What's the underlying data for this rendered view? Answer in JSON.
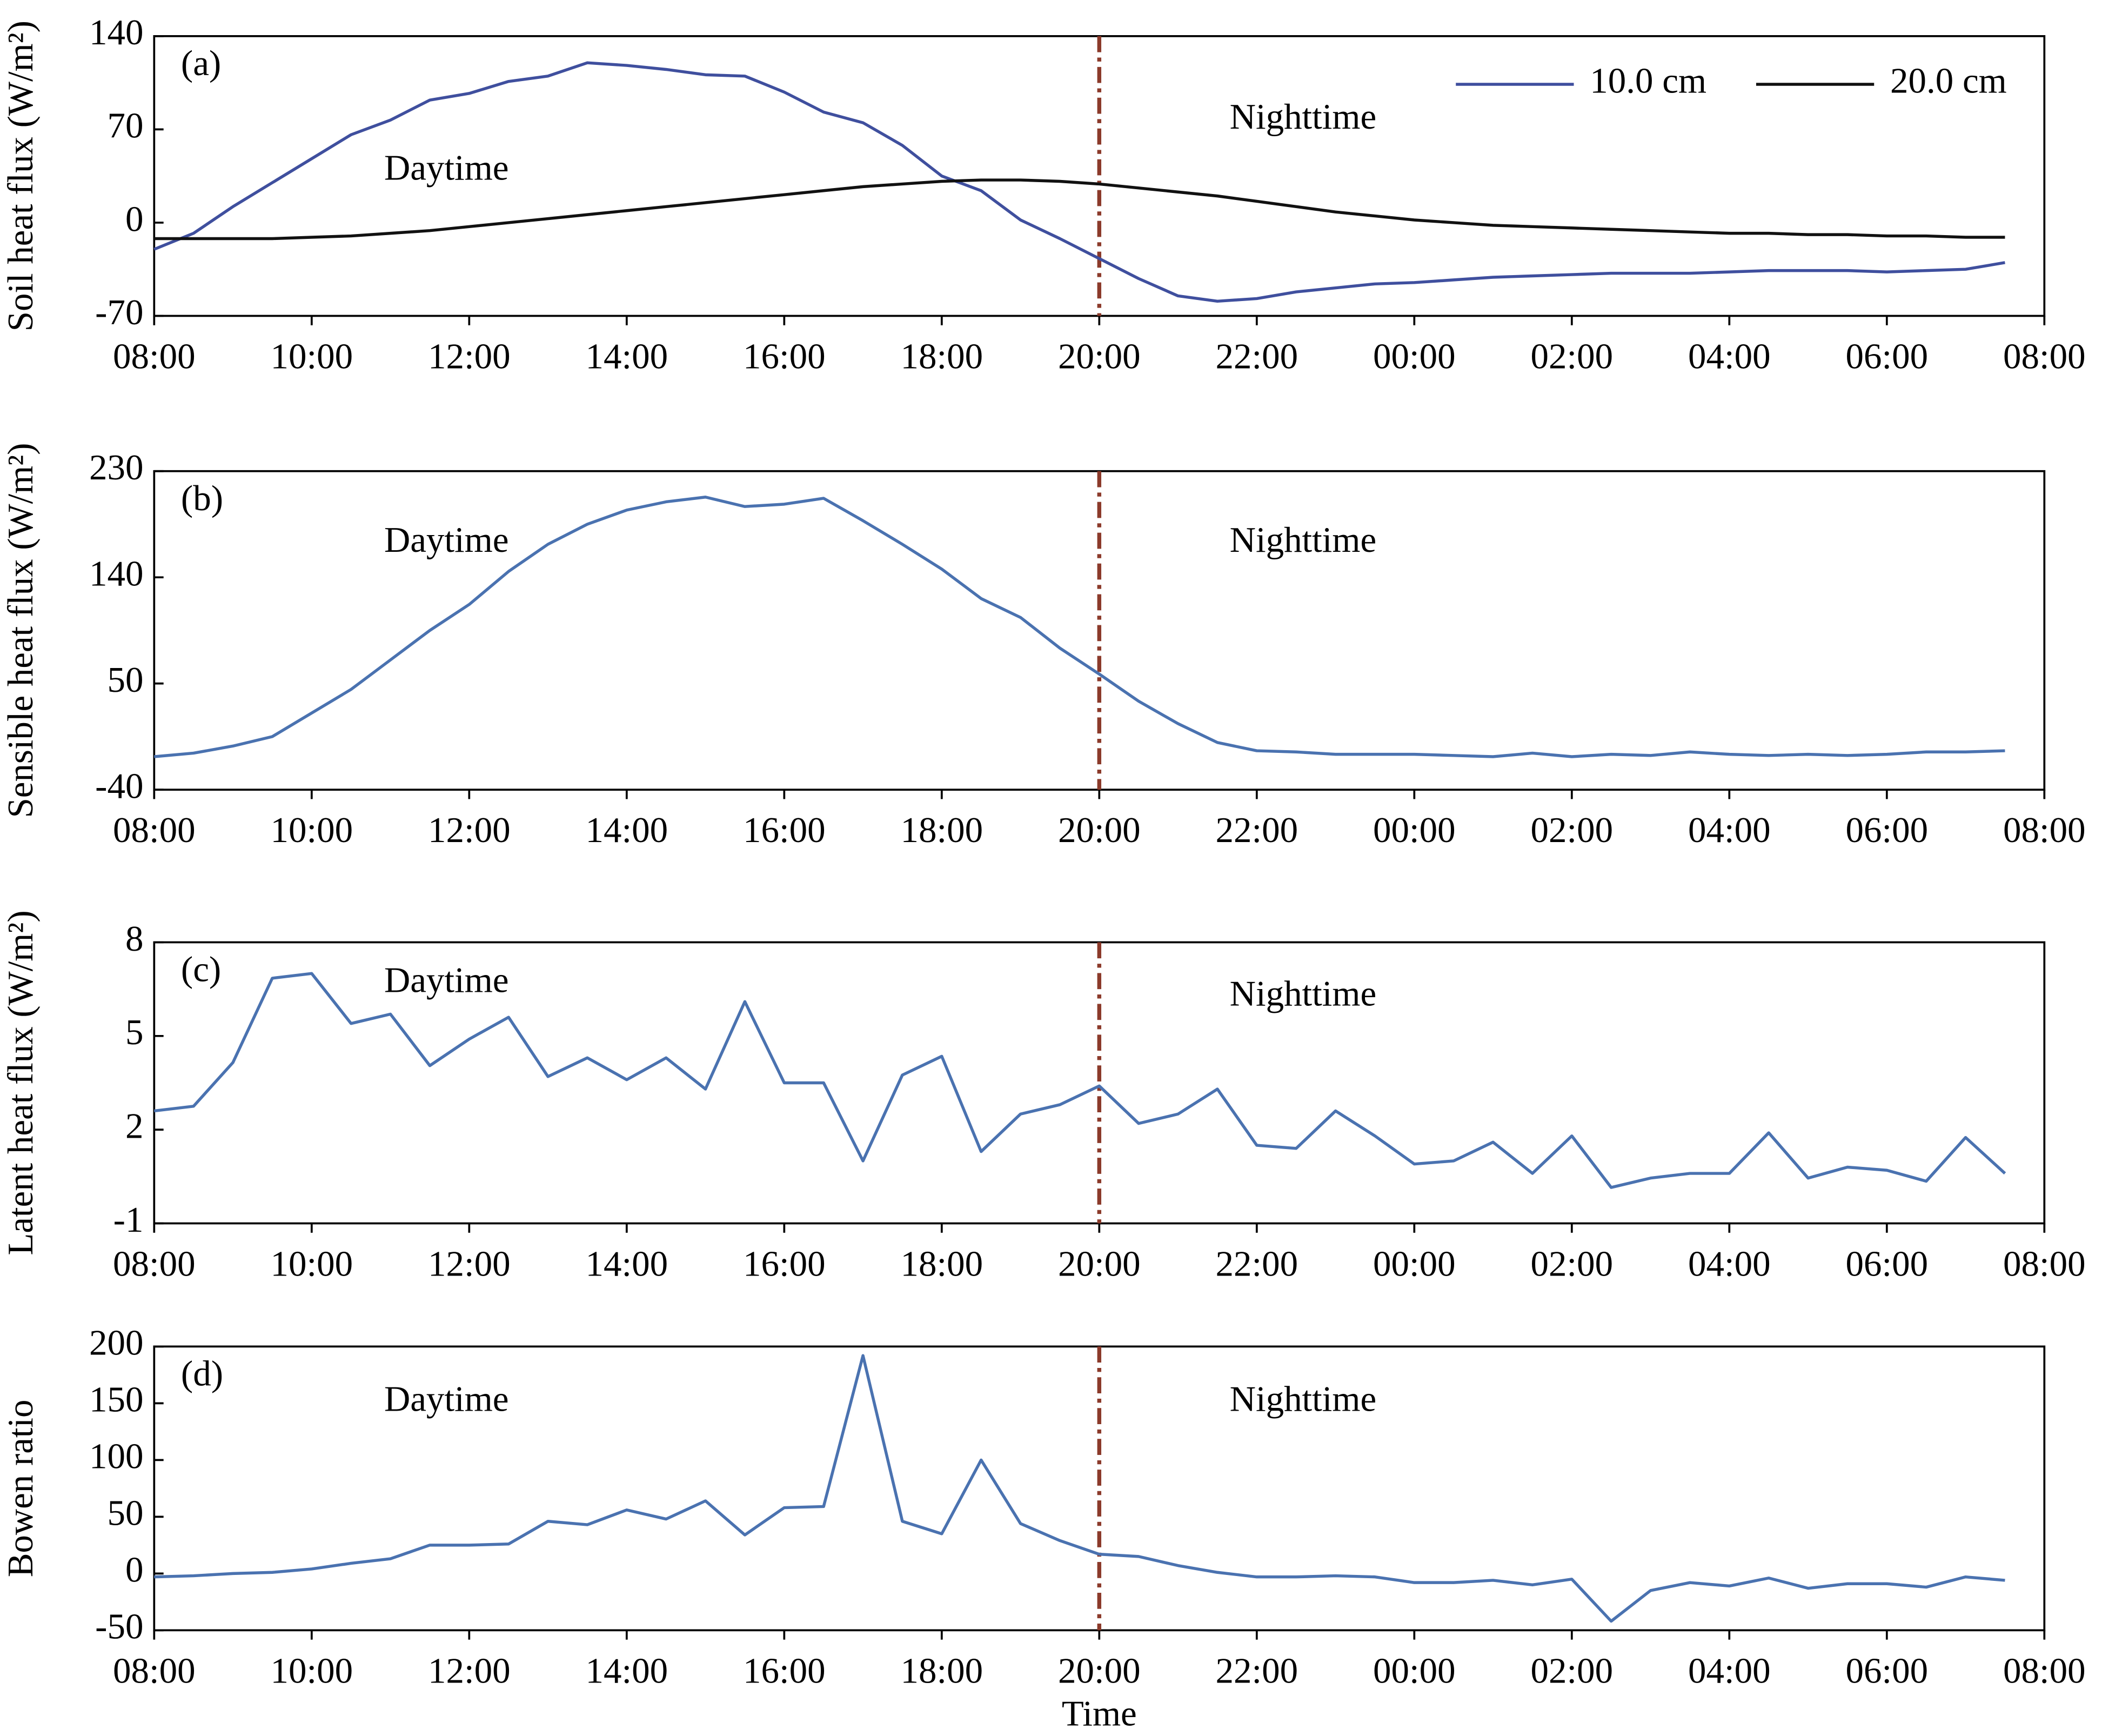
{
  "chart_data": [
    {
      "type": "line",
      "panel_label": "(a)",
      "ylabel": "Soil heat flux (W/m²)",
      "annotations": [
        "Daytime",
        "Nighttime"
      ],
      "legend": "upper right",
      "divider_x": 20,
      "divider_color": "#8b3a2a",
      "x": [
        8,
        8.5,
        9,
        9.5,
        10,
        10.5,
        11,
        11.5,
        12,
        12.5,
        13,
        13.5,
        14,
        14.5,
        15,
        15.5,
        16,
        16.5,
        17,
        17.5,
        18,
        18.5,
        19,
        19.5,
        20,
        20.5,
        21,
        21.5,
        22,
        22.5,
        23,
        23.5,
        24,
        24.5,
        25,
        25.5,
        26,
        26.5,
        27,
        27.5,
        28,
        28.5,
        29,
        29.5,
        30,
        30.5,
        31,
        31.5
      ],
      "xlim": [
        8,
        32
      ],
      "xticks": [
        {
          "value": 8,
          "label": "08:00"
        },
        {
          "value": 10,
          "label": "10:00"
        },
        {
          "value": 12,
          "label": "12:00"
        },
        {
          "value": 14,
          "label": "14:00"
        },
        {
          "value": 16,
          "label": "16:00"
        },
        {
          "value": 18,
          "label": "18:00"
        },
        {
          "value": 20,
          "label": "20:00"
        },
        {
          "value": 22,
          "label": "22:00"
        },
        {
          "value": 24,
          "label": "00:00"
        },
        {
          "value": 26,
          "label": "02:00"
        },
        {
          "value": 28,
          "label": "04:00"
        },
        {
          "value": 30,
          "label": "06:00"
        },
        {
          "value": 32,
          "label": "08:00"
        }
      ],
      "ylim": [
        -70,
        140
      ],
      "yticks": [
        -70,
        0,
        70,
        140
      ],
      "series": [
        {
          "name": "10.0 cm",
          "color": "#3f4f9e",
          "values": [
            -20,
            -8,
            12,
            30,
            48,
            66,
            77,
            92,
            97,
            106,
            110,
            120,
            118,
            115,
            111,
            110,
            98,
            83,
            75,
            58,
            35,
            24,
            2,
            -12,
            -27,
            -42,
            -55,
            -59,
            -57,
            -52,
            -49,
            -46,
            -45,
            -43,
            -41,
            -40,
            -39,
            -38,
            -38,
            -38,
            -37,
            -36,
            -36,
            -36,
            -37,
            -36,
            -35,
            -30
          ]
        },
        {
          "name": "20.0 cm",
          "color": "#111111",
          "values": [
            -12,
            -12,
            -12,
            -12,
            -11,
            -10,
            -8,
            -6,
            -3,
            0,
            3,
            6,
            9,
            12,
            15,
            18,
            21,
            24,
            27,
            29,
            31,
            32,
            32,
            31,
            29,
            26,
            23,
            20,
            16,
            12,
            8,
            5,
            2,
            0,
            -2,
            -3,
            -4,
            -5,
            -6,
            -7,
            -8,
            -8,
            -9,
            -9,
            -10,
            -10,
            -11,
            -11
          ]
        }
      ]
    },
    {
      "type": "line",
      "panel_label": "(b)",
      "ylabel": "Sensible heat flux (W/m²)",
      "annotations": [
        "Daytime",
        "Nighttime"
      ],
      "divider_x": 20,
      "divider_color": "#8b3a2a",
      "x": [
        8,
        8.5,
        9,
        9.5,
        10,
        10.5,
        11,
        11.5,
        12,
        12.5,
        13,
        13.5,
        14,
        14.5,
        15,
        15.5,
        16,
        16.5,
        17,
        17.5,
        18,
        18.5,
        19,
        19.5,
        20,
        20.5,
        21,
        21.5,
        22,
        22.5,
        23,
        23.5,
        24,
        24.5,
        25,
        25.5,
        26,
        26.5,
        27,
        27.5,
        28,
        28.5,
        29,
        29.5,
        30,
        30.5,
        31,
        31.5
      ],
      "xlim": [
        8,
        32
      ],
      "xticks": [
        {
          "value": 8,
          "label": "08:00"
        },
        {
          "value": 10,
          "label": "10:00"
        },
        {
          "value": 12,
          "label": "12:00"
        },
        {
          "value": 14,
          "label": "14:00"
        },
        {
          "value": 16,
          "label": "16:00"
        },
        {
          "value": 18,
          "label": "18:00"
        },
        {
          "value": 20,
          "label": "20:00"
        },
        {
          "value": 22,
          "label": "22:00"
        },
        {
          "value": 24,
          "label": "00:00"
        },
        {
          "value": 26,
          "label": "02:00"
        },
        {
          "value": 28,
          "label": "04:00"
        },
        {
          "value": 30,
          "label": "06:00"
        },
        {
          "value": 32,
          "label": "08:00"
        }
      ],
      "ylim": [
        -40,
        230
      ],
      "yticks": [
        -40,
        50,
        140,
        230
      ],
      "color": "#4a72b0",
      "values": [
        -12,
        -9,
        -3,
        5,
        25,
        45,
        70,
        95,
        117,
        145,
        168,
        185,
        197,
        204,
        208,
        200,
        202,
        207,
        188,
        168,
        147,
        122,
        106,
        80,
        58,
        35,
        16,
        0,
        -7,
        -8,
        -10,
        -10,
        -10,
        -11,
        -12,
        -9,
        -12,
        -10,
        -11,
        -8,
        -10,
        -11,
        -10,
        -11,
        -10,
        -8,
        -8,
        -7
      ]
    },
    {
      "type": "line",
      "panel_label": "(c)",
      "ylabel": "Latent heat flux (W/m²)",
      "annotations": [
        "Daytime",
        "Nighttime"
      ],
      "divider_x": 20,
      "divider_color": "#8b3a2a",
      "x": [
        8,
        8.5,
        9,
        9.5,
        10,
        10.5,
        11,
        11.5,
        12,
        12.5,
        13,
        13.5,
        14,
        14.5,
        15,
        15.5,
        16,
        16.5,
        17,
        17.5,
        18,
        18.5,
        19,
        19.5,
        20,
        20.5,
        21,
        21.5,
        22,
        22.5,
        23,
        23.5,
        24,
        24.5,
        25,
        25.5,
        26,
        26.5,
        27,
        27.5,
        28,
        28.5,
        29,
        29.5,
        30,
        30.5,
        31,
        31.5
      ],
      "xlim": [
        8,
        32
      ],
      "xticks": [
        {
          "value": 8,
          "label": "08:00"
        },
        {
          "value": 10,
          "label": "10:00"
        },
        {
          "value": 12,
          "label": "12:00"
        },
        {
          "value": 14,
          "label": "14:00"
        },
        {
          "value": 16,
          "label": "16:00"
        },
        {
          "value": 18,
          "label": "18:00"
        },
        {
          "value": 20,
          "label": "20:00"
        },
        {
          "value": 22,
          "label": "22:00"
        },
        {
          "value": 24,
          "label": "00:00"
        },
        {
          "value": 26,
          "label": "02:00"
        },
        {
          "value": 28,
          "label": "04:00"
        },
        {
          "value": 30,
          "label": "06:00"
        },
        {
          "value": 32,
          "label": "08:00"
        }
      ],
      "ylim": [
        -1,
        8
      ],
      "yticks": [
        -1,
        2,
        5,
        8
      ],
      "color": "#4a72b0",
      "values": [
        2.6,
        2.75,
        4.15,
        6.85,
        7.0,
        5.4,
        5.7,
        4.05,
        4.9,
        5.6,
        3.7,
        4.3,
        3.6,
        4.3,
        3.3,
        6.1,
        3.5,
        3.5,
        1.0,
        3.75,
        4.35,
        1.3,
        2.5,
        2.8,
        3.4,
        2.2,
        2.5,
        3.3,
        1.5,
        1.4,
        2.6,
        1.8,
        0.9,
        1.0,
        1.6,
        0.6,
        1.8,
        0.15,
        0.45,
        0.6,
        0.6,
        1.9,
        0.45,
        0.8,
        0.7,
        0.35,
        1.75,
        0.6
      ]
    },
    {
      "type": "line",
      "panel_label": "(d)",
      "ylabel": "Bowen ratio",
      "xlabel": "Time",
      "annotations": [
        "Daytime",
        "Nighttime"
      ],
      "divider_x": 20,
      "divider_color": "#8b3a2a",
      "x": [
        8,
        8.5,
        9,
        9.5,
        10,
        10.5,
        11,
        11.5,
        12,
        12.5,
        13,
        13.5,
        14,
        14.5,
        15,
        15.5,
        16,
        16.5,
        17,
        17.5,
        18,
        18.5,
        19,
        19.5,
        20,
        20.5,
        21,
        21.5,
        22,
        22.5,
        23,
        23.5,
        24,
        24.5,
        25,
        25.5,
        26,
        26.5,
        27,
        27.5,
        28,
        28.5,
        29,
        29.5,
        30,
        30.5,
        31,
        31.5
      ],
      "xlim": [
        8,
        32
      ],
      "xticks": [
        {
          "value": 8,
          "label": "08:00"
        },
        {
          "value": 10,
          "label": "10:00"
        },
        {
          "value": 12,
          "label": "12:00"
        },
        {
          "value": 14,
          "label": "14:00"
        },
        {
          "value": 16,
          "label": "16:00"
        },
        {
          "value": 18,
          "label": "18:00"
        },
        {
          "value": 20,
          "label": "20:00"
        },
        {
          "value": 22,
          "label": "22:00"
        },
        {
          "value": 24,
          "label": "00:00"
        },
        {
          "value": 26,
          "label": "02:00"
        },
        {
          "value": 28,
          "label": "04:00"
        },
        {
          "value": 30,
          "label": "06:00"
        },
        {
          "value": 32,
          "label": "08:00"
        }
      ],
      "ylim": [
        -50,
        200
      ],
      "yticks": [
        -50,
        0,
        50,
        100,
        150,
        200
      ],
      "color": "#4a72b0",
      "values": [
        -3,
        -2,
        0,
        1,
        4,
        9,
        13,
        25,
        25,
        26,
        46,
        43,
        56,
        48,
        64,
        34,
        58,
        59,
        192,
        46,
        35,
        100,
        44,
        29,
        17,
        15,
        7,
        1,
        -3,
        -3,
        -2,
        -3,
        -8,
        -8,
        -6,
        -10,
        -5,
        -42,
        -15,
        -8,
        -11,
        -4,
        -13,
        -9,
        -9,
        -12,
        -3,
        -6
      ]
    }
  ]
}
